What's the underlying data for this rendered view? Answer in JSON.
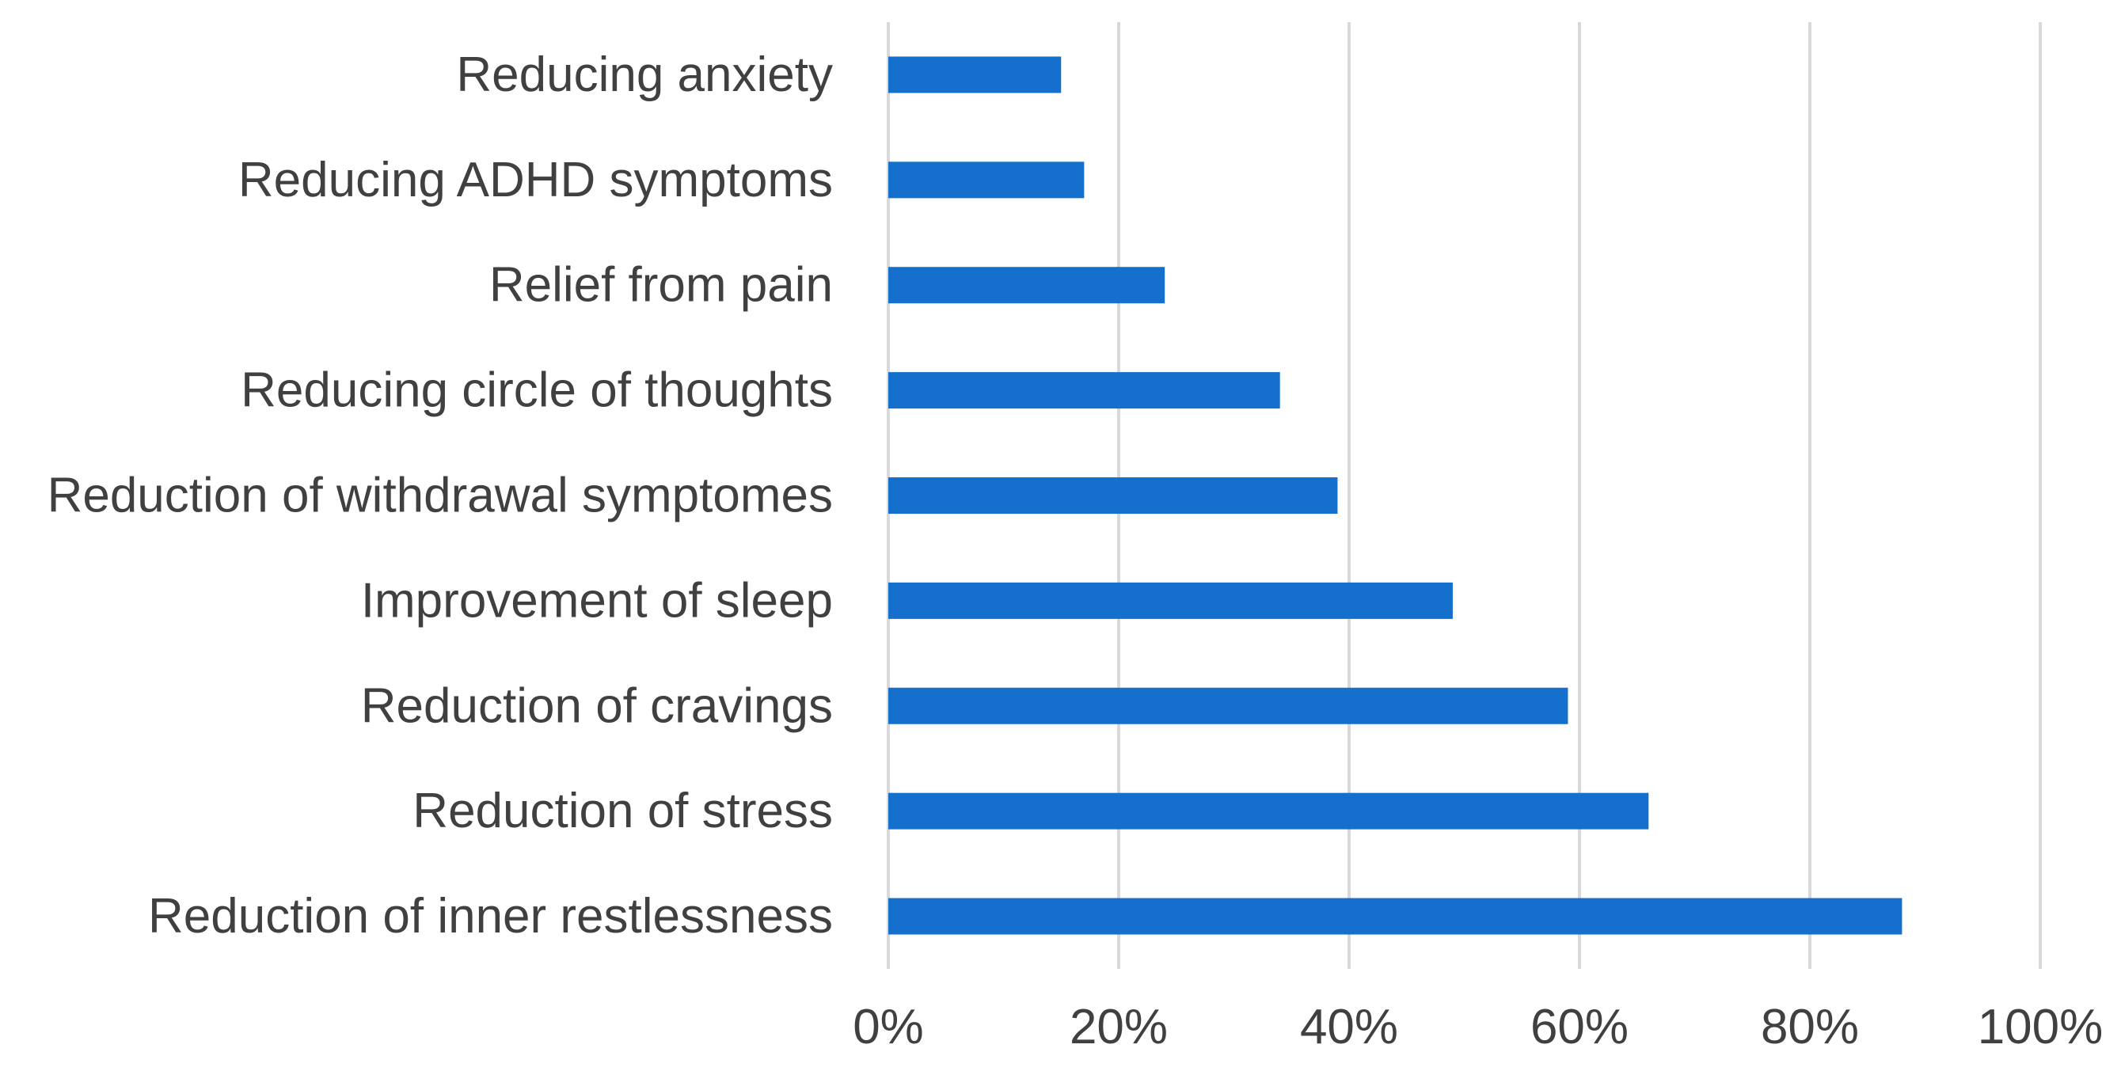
{
  "chart_data": {
    "type": "bar",
    "orientation": "horizontal",
    "categories": [
      "Reducing anxiety",
      "Reducing ADHD symptoms",
      "Relief from pain",
      "Reducing circle of thoughts",
      "Reduction of withdrawal symptomes",
      "Improvement of sleep",
      "Reduction of cravings",
      "Reduction of stress",
      "Reduction of inner restlessness"
    ],
    "values": [
      15,
      17,
      24,
      34,
      39,
      49,
      59,
      66,
      88
    ],
    "value_unit": "%",
    "xlim": [
      0,
      100
    ],
    "x_ticks": [
      "0%",
      "20%",
      "40%",
      "60%",
      "80%",
      "100%"
    ],
    "grid": "vertical",
    "legend": "none",
    "bar_color": "#1570cd",
    "title": "",
    "xlabel": "",
    "ylabel": ""
  }
}
